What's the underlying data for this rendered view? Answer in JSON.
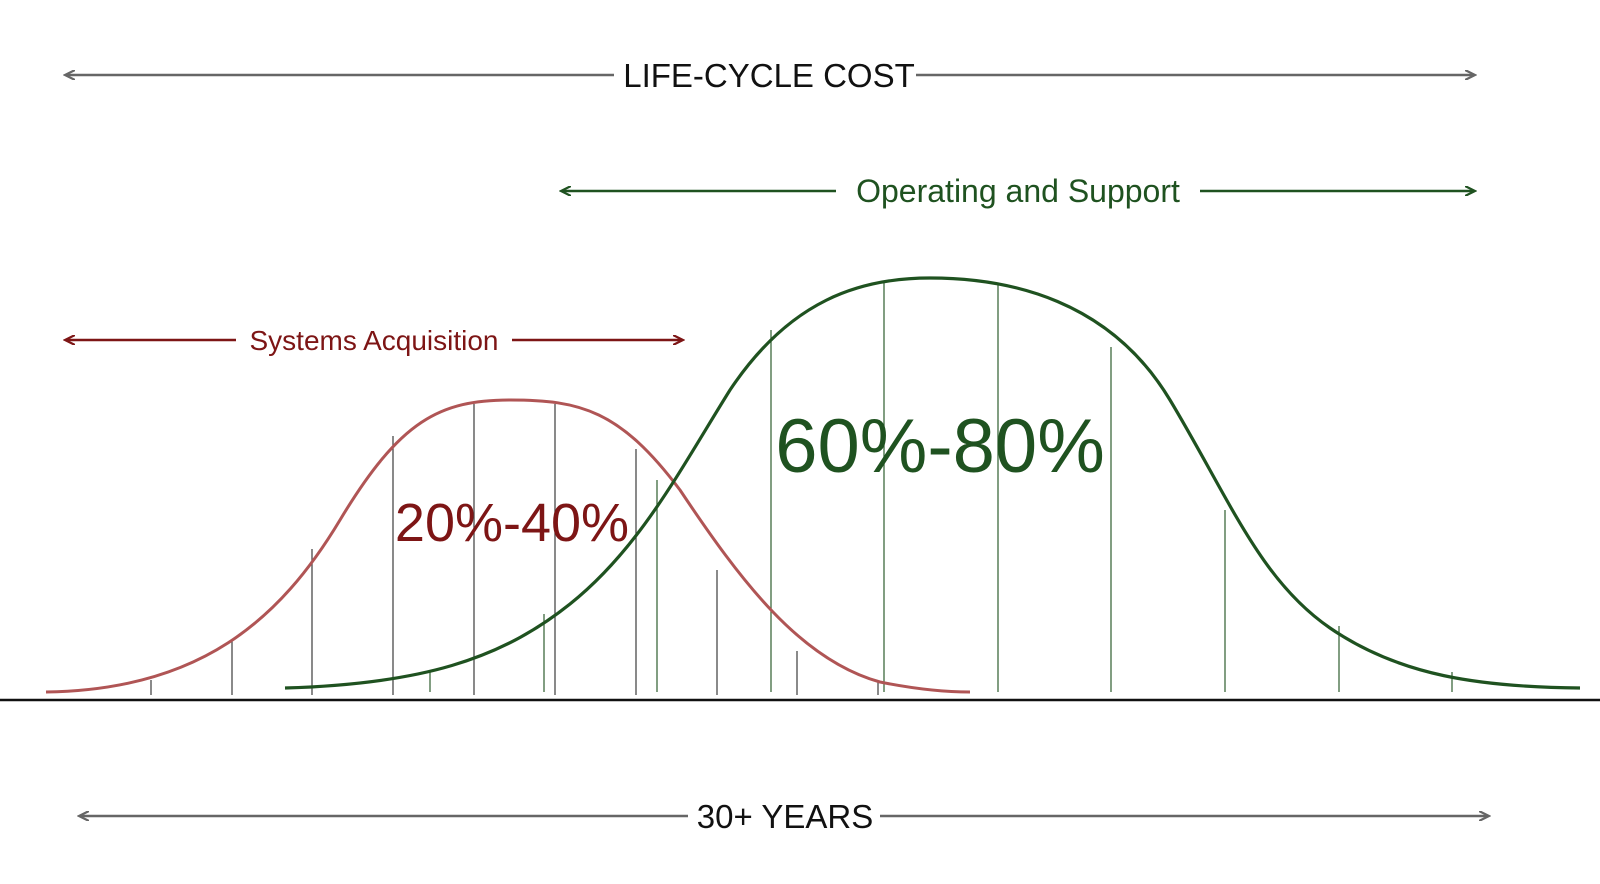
{
  "labels": {
    "life_cycle_cost": "LIFE-CYCLE COST",
    "operating_and_support": "Operating and Support",
    "systems_acquisition": "Systems Acquisition",
    "acquisition_share": "20%-40%",
    "operating_share": "60%-80%",
    "duration": "30+ YEARS"
  },
  "colors": {
    "dark_arrow": "#666666",
    "dark_text": "#111111",
    "green": "#1f5220",
    "green_fill_lines": "#3e6a3e",
    "red": "#7d1515",
    "red_curve": "#b05555",
    "baseline": "#111111"
  }
}
